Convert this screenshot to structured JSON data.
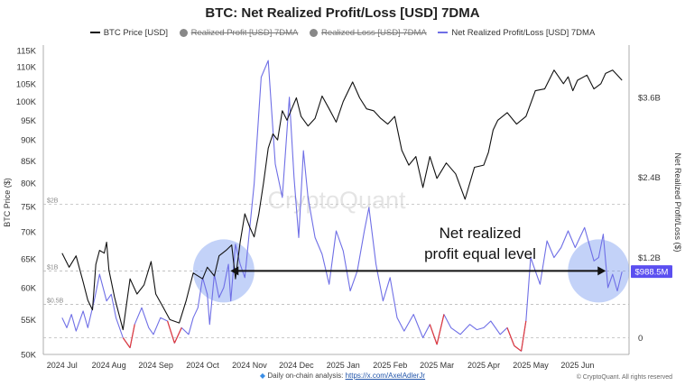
{
  "header": {
    "title": "BTC: Net Realized Profit/Loss [USD] 7DMA"
  },
  "legend": [
    {
      "label": "BTC Price [USD]",
      "icon": "line-icon",
      "color": "#111111",
      "struck": false
    },
    {
      "label": "Realized Profit [USD] 7DMA",
      "icon": "dot-icon",
      "color": "#888888",
      "struck": true
    },
    {
      "label": "Realized Loss [USD] 7DMA",
      "icon": "dot-icon",
      "color": "#888888",
      "struck": true
    },
    {
      "label": "Net Realized Profit/Loss [USD] 7DMA",
      "icon": "line-icon",
      "color": "#6f6fe6",
      "struck": false
    }
  ],
  "watermark": "CryptoQuant",
  "annotation": {
    "line1": "Net realized",
    "line2": "profit equal level"
  },
  "current_value_badge": "$988.5M",
  "footer": {
    "prefix": "Daily on-chain analysis: ",
    "link": "https://x.com/AxelAdlerJr",
    "copyright": "© CryptoQuant. All rights reserved"
  },
  "colors": {
    "price": "#111111",
    "net": "#6f6fe6",
    "negative": "#e23b3b",
    "highlight": "#7b9cf0",
    "badge": "#5b4ff0",
    "grid": "#bbbbbb"
  },
  "chart_data": {
    "type": "line",
    "title": "BTC: Net Realized Profit/Loss [USD] 7DMA",
    "x_ticks": [
      "2024 Jul",
      "2024 Aug",
      "2024 Sep",
      "2024 Oct",
      "2024 Nov",
      "2024 Dec",
      "2025 Jan",
      "2025 Feb",
      "2025 Mar",
      "2025 Apr",
      "2025 May",
      "2025 Jun"
    ],
    "y_left": {
      "label": "BTC Price ($)",
      "ticks": [
        "50K",
        "55K",
        "60K",
        "65K",
        "70K",
        "75K",
        "80K",
        "85K",
        "90K",
        "95K",
        "100K",
        "105K",
        "110K",
        "115K"
      ],
      "ylim": [
        50000,
        115000
      ],
      "scale": "log"
    },
    "y_right": {
      "label": "Net Realized Profit/Loss ($)",
      "ticks": [
        "0",
        "$1.2B",
        "$2.4B",
        "$3.6B"
      ],
      "ylim": [
        -0.25,
        4.3
      ],
      "unit": "billion USD"
    },
    "reference_lines": [
      {
        "label": "$2B",
        "value": 2.0
      },
      {
        "label": "$1B",
        "value": 1.0
      },
      {
        "label": "$0.5B",
        "value": 0.5
      },
      {
        "label": "",
        "value": 0
      }
    ],
    "series": [
      {
        "name": "BTC Price [USD]",
        "axis": "left",
        "x": [
          0,
          0.15,
          0.3,
          0.45,
          0.55,
          0.65,
          0.72,
          0.8,
          0.9,
          0.95,
          1.0,
          1.12,
          1.3,
          1.45,
          1.6,
          1.75,
          1.9,
          2.0,
          2.15,
          2.3,
          2.5,
          2.65,
          2.8,
          3.0,
          3.1,
          3.25,
          3.35,
          3.5,
          3.62,
          3.7,
          3.8,
          3.9,
          4.0,
          4.1,
          4.2,
          4.3,
          4.4,
          4.5,
          4.6,
          4.7,
          4.8,
          4.9,
          5.0,
          5.1,
          5.25,
          5.4,
          5.55,
          5.7,
          5.85,
          6.0,
          6.2,
          6.35,
          6.5,
          6.65,
          6.8,
          6.95,
          7.1,
          7.25,
          7.4,
          7.55,
          7.7,
          7.85,
          8.0,
          8.2,
          8.4,
          8.6,
          8.8,
          9.0,
          9.1,
          9.2,
          9.3,
          9.5,
          9.7,
          9.9,
          10.1,
          10.3,
          10.5,
          10.7,
          10.8,
          10.9,
          11.0,
          11.2,
          11.35,
          11.5,
          11.6,
          11.75,
          11.85,
          11.95
        ],
        "values": [
          66000,
          63500,
          65500,
          61000,
          58000,
          56500,
          64000,
          66500,
          66000,
          68000,
          63000,
          58500,
          53500,
          61500,
          59000,
          60500,
          64500,
          59000,
          57000,
          55000,
          54500,
          58000,
          62500,
          61500,
          63500,
          62000,
          65500,
          66500,
          67500,
          61500,
          68000,
          73500,
          71000,
          69000,
          73500,
          80000,
          88000,
          91500,
          90000,
          97500,
          95000,
          98000,
          101000,
          96000,
          93500,
          95500,
          101500,
          98000,
          94500,
          100000,
          105500,
          101000,
          98000,
          97500,
          95500,
          94000,
          96000,
          87500,
          84000,
          86000,
          79000,
          86000,
          81000,
          84500,
          82000,
          76500,
          83500,
          84000,
          87000,
          92500,
          95000,
          97000,
          94000,
          96000,
          103000,
          103500,
          109000,
          105000,
          107000,
          103000,
          106000,
          107500,
          103500,
          105000,
          108000,
          109000,
          107500,
          106000
        ]
      },
      {
        "name": "Net Realized Profit/Loss [USD] 7DMA",
        "axis": "right",
        "x": [
          0,
          0.1,
          0.2,
          0.3,
          0.45,
          0.55,
          0.7,
          0.8,
          0.95,
          1.05,
          1.15,
          1.3,
          1.45,
          1.55,
          1.7,
          1.85,
          1.95,
          2.1,
          2.25,
          2.4,
          2.55,
          2.7,
          2.8,
          2.9,
          3.0,
          3.1,
          3.15,
          3.25,
          3.35,
          3.45,
          3.55,
          3.6,
          3.7,
          3.8,
          3.9,
          4.0,
          4.1,
          4.25,
          4.4,
          4.55,
          4.7,
          4.85,
          4.95,
          5.05,
          5.15,
          5.25,
          5.4,
          5.55,
          5.7,
          5.85,
          6.0,
          6.15,
          6.3,
          6.45,
          6.55,
          6.7,
          6.85,
          7.0,
          7.15,
          7.3,
          7.5,
          7.7,
          7.85,
          8.0,
          8.15,
          8.3,
          8.5,
          8.7,
          8.85,
          9.0,
          9.15,
          9.35,
          9.5,
          9.65,
          9.8,
          9.9,
          10.0,
          10.1,
          10.2,
          10.35,
          10.5,
          10.65,
          10.8,
          10.95,
          11.05,
          11.15,
          11.25,
          11.35,
          11.45,
          11.55,
          11.65,
          11.75,
          11.85,
          11.95
        ],
        "values": [
          0.3,
          0.15,
          0.35,
          0.1,
          0.4,
          0.15,
          0.6,
          0.95,
          0.55,
          0.65,
          0.3,
          0.0,
          -0.15,
          0.2,
          0.45,
          0.15,
          0.05,
          0.3,
          0.25,
          -0.08,
          0.15,
          0.05,
          0.3,
          0.45,
          0.9,
          0.65,
          0.2,
          0.95,
          0.6,
          0.75,
          1.1,
          0.55,
          1.4,
          1.1,
          0.9,
          1.6,
          2.3,
          3.9,
          4.15,
          2.6,
          2.1,
          3.6,
          2.4,
          1.5,
          2.8,
          2.1,
          1.5,
          1.25,
          0.8,
          1.6,
          1.3,
          0.7,
          1.0,
          1.6,
          1.95,
          1.1,
          0.55,
          0.9,
          0.3,
          0.1,
          0.35,
          0.0,
          0.2,
          -0.1,
          0.35,
          0.15,
          0.05,
          0.2,
          0.12,
          0.15,
          0.25,
          0.05,
          0.15,
          -0.12,
          -0.2,
          0.25,
          1.2,
          1.0,
          0.8,
          1.45,
          1.2,
          1.35,
          1.6,
          1.35,
          1.5,
          1.65,
          1.4,
          1.15,
          1.2,
          1.55,
          0.75,
          0.95,
          0.7,
          0.99
        ]
      }
    ],
    "grid": false,
    "legend_position": "top-center"
  }
}
